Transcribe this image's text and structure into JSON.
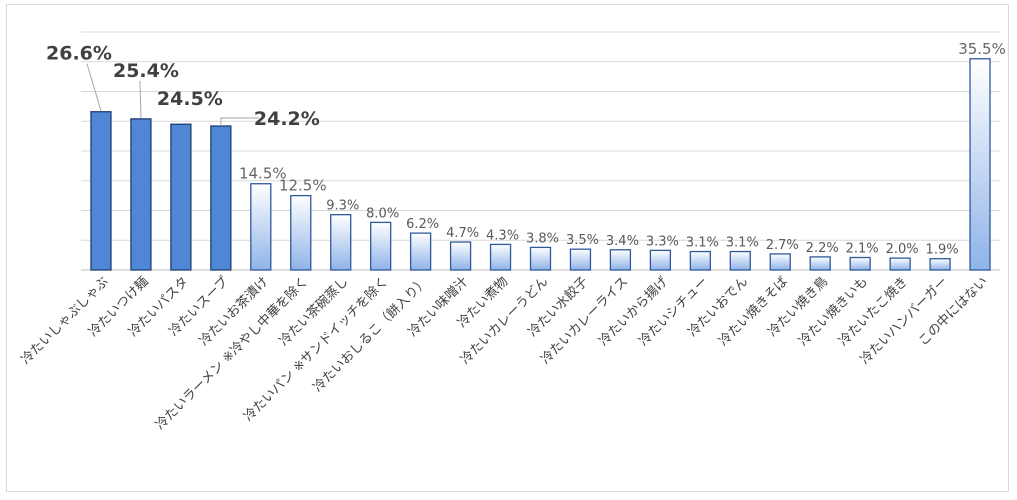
{
  "chart_data": {
    "type": "bar",
    "title": "",
    "xlabel": "",
    "ylabel": "",
    "ylim": [
      0,
      40
    ],
    "grid": true,
    "legend": "none",
    "categories": [
      "冷たいしゃぶしゃぶ",
      "冷たいつけ麺",
      "冷たいパスタ",
      "冷たいスープ",
      "冷たいお茶漬け",
      "冷たいラーメン ※冷やし中華を除く",
      "冷たい茶碗蒸し",
      "冷たいパン ※サンドイッチを除く",
      "冷たいおしるこ（餅入り）",
      "冷たい味噌汁",
      "冷たい煮物",
      "冷たいカレーうどん",
      "冷たい水餃子",
      "冷たいカレーライス",
      "冷たいから揚げ",
      "冷たいシチュー",
      "冷たいおでん",
      "冷たい焼きそば",
      "冷たい焼き鳥",
      "冷たい焼きいも",
      "冷たいたこ焼き",
      "冷たいハンバーガー",
      "この中にはない"
    ],
    "values": [
      26.6,
      25.4,
      24.5,
      24.2,
      14.5,
      12.5,
      9.3,
      8.0,
      6.2,
      4.7,
      4.3,
      3.8,
      3.5,
      3.4,
      3.3,
      3.1,
      3.1,
      2.7,
      2.2,
      2.1,
      2.0,
      1.9,
      35.5
    ],
    "data_labels": [
      "26.6%",
      "25.4%",
      "24.5%",
      "24.2%",
      "14.5%",
      "12.5%",
      "9.3%",
      "8.0%",
      "6.2%",
      "4.7%",
      "4.3%",
      "3.8%",
      "3.5%",
      "3.4%",
      "3.3%",
      "3.1%",
      "3.1%",
      "2.7%",
      "2.2%",
      "2.1%",
      "2.0%",
      "1.9%",
      "35.5%"
    ],
    "highlight_count": 4,
    "colors": {
      "highlight_fill": "#4f86d6",
      "highlight_stroke": "#1f3f70",
      "gradient_top": "#ffffff",
      "gradient_bottom": "#8fb3e8",
      "gradient_stroke": "#2e5a9c",
      "grid": "#d9d9d9"
    }
  }
}
